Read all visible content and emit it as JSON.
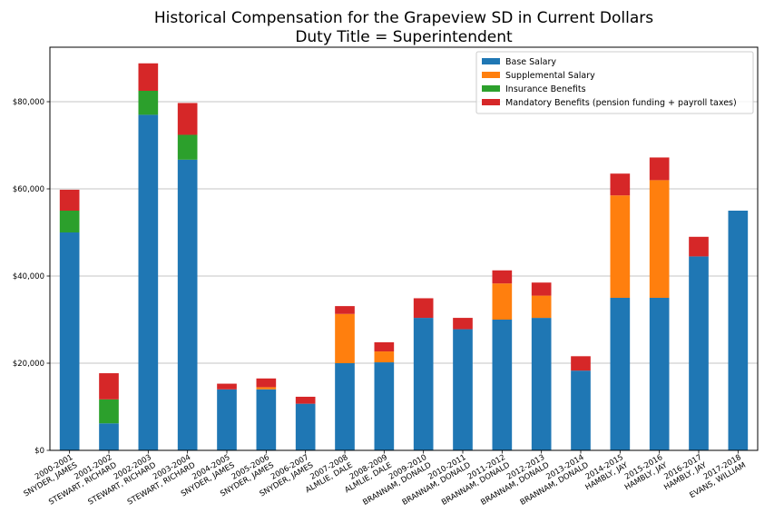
{
  "chart_data": {
    "type": "bar",
    "stacked": true,
    "title": "Historical Compensation for the Grapeview SD in Current Dollars",
    "subtitle": "Duty Title = Superintendent",
    "xlabel": "",
    "ylabel": "",
    "ylim": [
      0,
      92500
    ],
    "yticks": [
      0,
      20000,
      40000,
      60000,
      80000
    ],
    "ytick_labels": [
      "$0",
      "$20,000",
      "$40,000",
      "$60,000",
      "$80,000"
    ],
    "grid": "horizontal",
    "legend_position": "top-right",
    "categories": [
      {
        "year": "2000-2001",
        "name": "SNYDER, JAMES"
      },
      {
        "year": "2001-2002",
        "name": "STEWART, RICHARD"
      },
      {
        "year": "2002-2003",
        "name": "STEWART, RICHARD"
      },
      {
        "year": "2003-2004",
        "name": "STEWART, RICHARD"
      },
      {
        "year": "2004-2005",
        "name": "SNYDER, JAMES"
      },
      {
        "year": "2005-2006",
        "name": "SNYDER, JAMES"
      },
      {
        "year": "2006-2007",
        "name": "SNYDER, JAMES"
      },
      {
        "year": "2007-2008",
        "name": "ALMLIE, DALE"
      },
      {
        "year": "2008-2009",
        "name": "ALMLIE, DALE"
      },
      {
        "year": "2009-2010",
        "name": "BRANNAM, DONALD"
      },
      {
        "year": "2010-2011",
        "name": "BRANNAM, DONALD"
      },
      {
        "year": "2011-2012",
        "name": "BRANNAM, DONALD"
      },
      {
        "year": "2012-2013",
        "name": "BRANNAM, DONALD"
      },
      {
        "year": "2013-2014",
        "name": "BRANNAM, DONALD"
      },
      {
        "year": "2014-2015",
        "name": "HAMBLY, JAY"
      },
      {
        "year": "2015-2016",
        "name": "HAMBLY, JAY"
      },
      {
        "year": "2016-2017",
        "name": "HAMBLY, JAY"
      },
      {
        "year": "2017-2018",
        "name": "EVANS, WILLIAM"
      }
    ],
    "series": [
      {
        "name": "Base Salary",
        "color": "#1f77b4",
        "values": [
          50000,
          6200,
          77000,
          66700,
          14000,
          14000,
          10700,
          20000,
          20200,
          30400,
          27800,
          30000,
          30400,
          18300,
          35000,
          35000,
          44500,
          55000
        ]
      },
      {
        "name": "Supplemental Salary",
        "color": "#ff7f0e",
        "values": [
          0,
          0,
          0,
          0,
          0,
          500,
          0,
          11300,
          2500,
          0,
          0,
          8300,
          5100,
          0,
          23500,
          27000,
          0,
          0
        ]
      },
      {
        "name": "Insurance Benefits",
        "color": "#2ca02c",
        "values": [
          5000,
          5500,
          5500,
          5700,
          0,
          0,
          0,
          0,
          0,
          0,
          0,
          0,
          0,
          0,
          0,
          0,
          0,
          0
        ]
      },
      {
        "name": "Mandatory Benefits (pension funding + payroll taxes)",
        "color": "#d62728",
        "values": [
          4800,
          6000,
          6300,
          7300,
          1300,
          2000,
          1600,
          1800,
          2100,
          4500,
          2600,
          3000,
          3000,
          3300,
          5000,
          5200,
          4500,
          0
        ]
      }
    ]
  }
}
